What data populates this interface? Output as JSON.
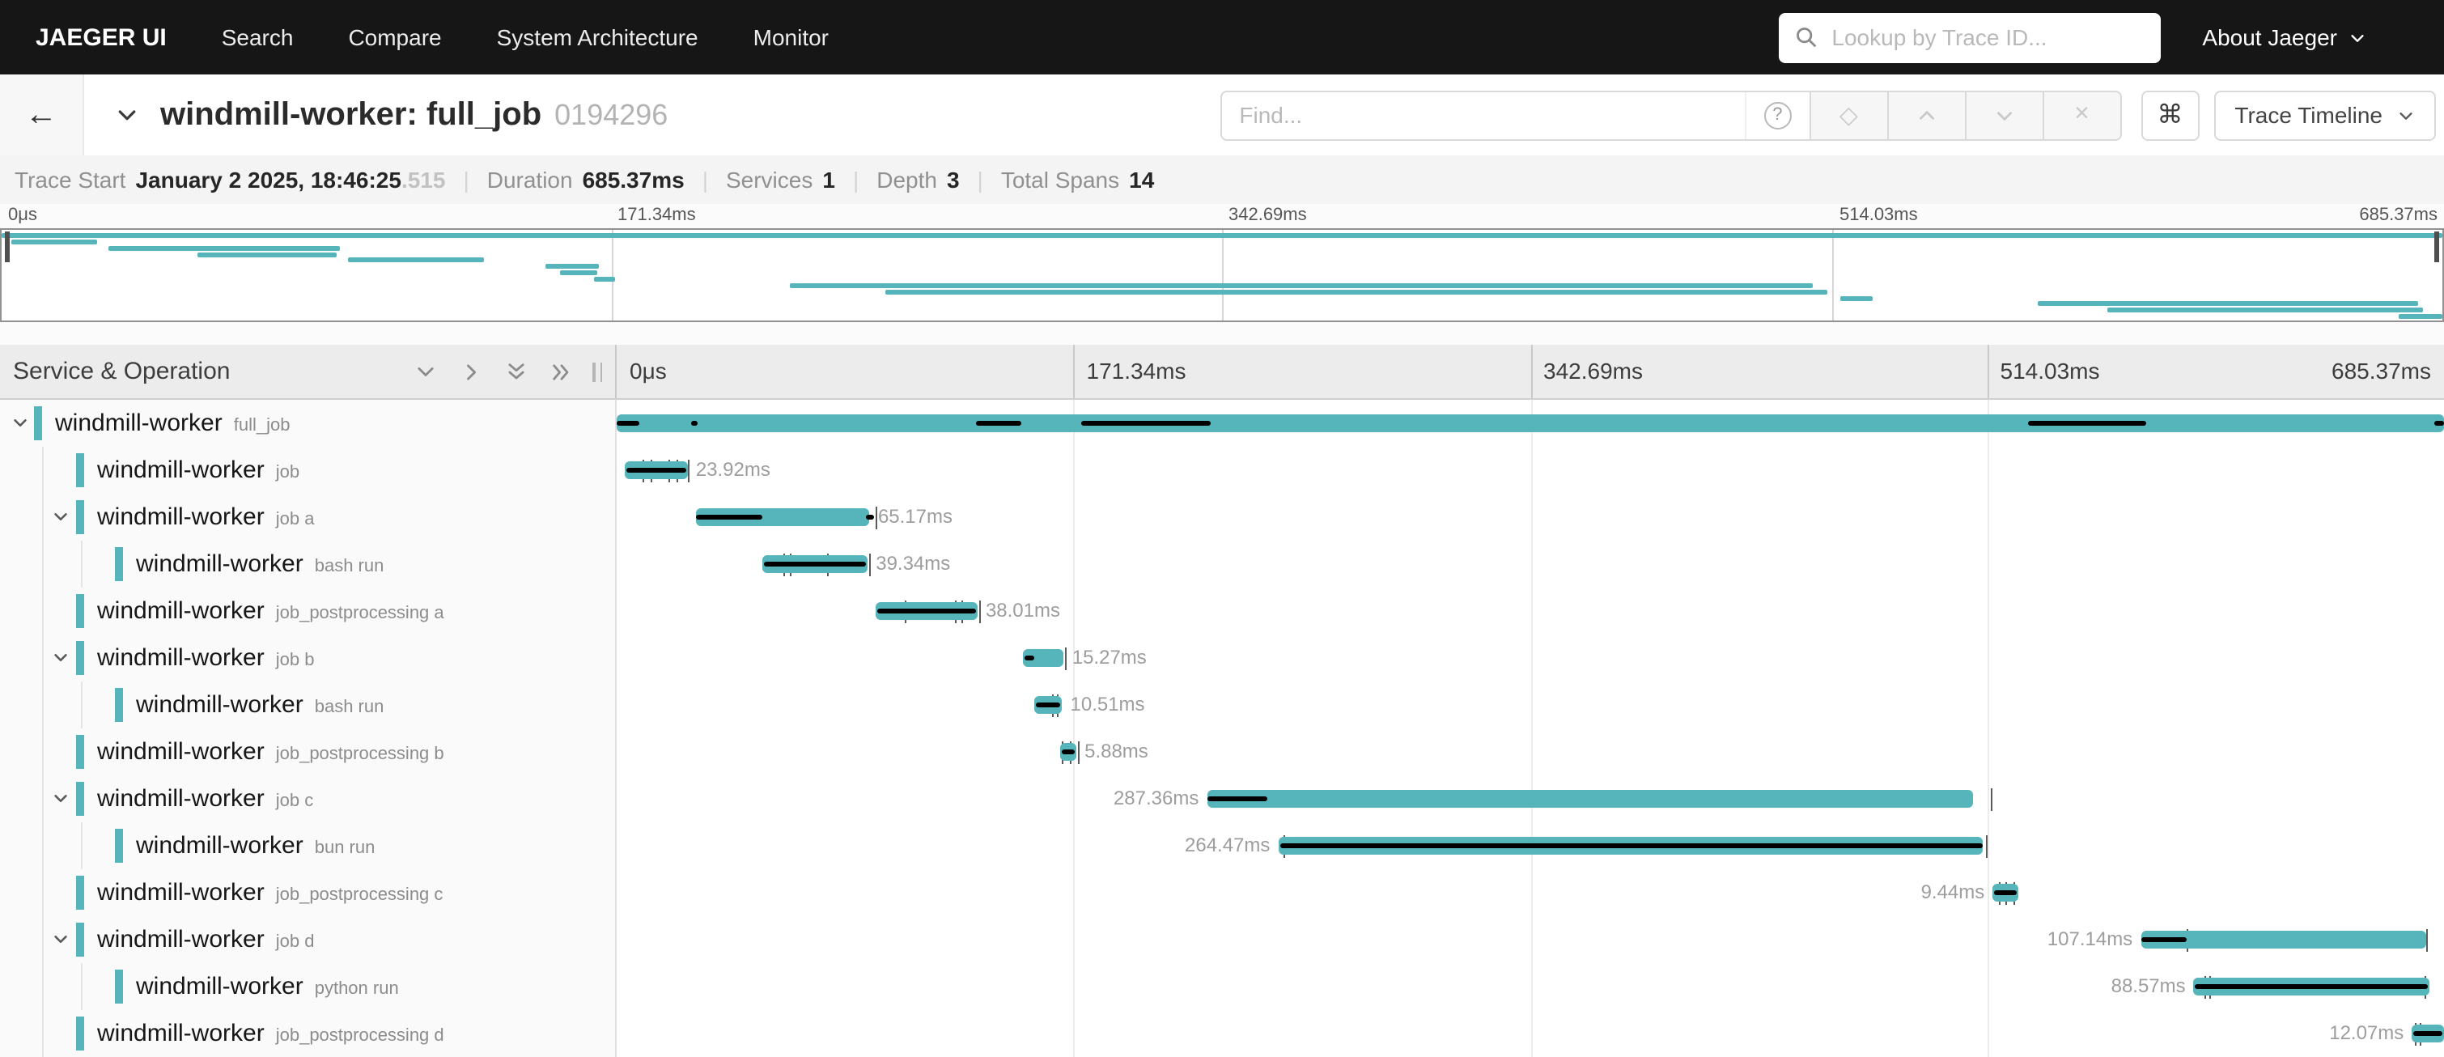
{
  "nav": {
    "brand": "JAEGER UI",
    "items": [
      "Search",
      "Compare",
      "System Architecture",
      "Monitor"
    ],
    "trace_lookup_placeholder": "Lookup by Trace ID...",
    "about_label": "About Jaeger"
  },
  "trace_header": {
    "back_glyph": "←",
    "title": "windmill-worker: full_job",
    "trace_id": "0194296",
    "find_placeholder": "Find...",
    "help_glyph": "?",
    "focus_glyph": "◇",
    "clear_glyph": "×",
    "shortcuts_glyph": "⌘",
    "view_selector_label": "Trace Timeline"
  },
  "stats": {
    "items": [
      {
        "label": "Trace Start",
        "value": "January 2 2025, 18:46:25",
        "suffix": ".515"
      },
      {
        "label": "Duration",
        "value": "685.37ms",
        "suffix": ""
      },
      {
        "label": "Services",
        "value": "1",
        "suffix": ""
      },
      {
        "label": "Depth",
        "value": "3",
        "suffix": ""
      },
      {
        "label": "Total Spans",
        "value": "14",
        "suffix": ""
      }
    ]
  },
  "timeline": {
    "left_header": "Service & Operation",
    "ticks": [
      "0μs",
      "171.34ms",
      "342.69ms",
      "514.03ms",
      "685.37ms"
    ]
  },
  "spans": [
    {
      "service": "windmill-worker",
      "operation": "full_job",
      "depth": 0,
      "has_children": true,
      "start_pct": 0,
      "width_pct": 100,
      "duration_label": "",
      "label_side": "none",
      "critical_pct": [
        [
          0,
          1.2
        ],
        [
          4.1,
          4.45
        ],
        [
          19.7,
          22.1
        ],
        [
          25.4,
          32.5
        ],
        [
          77.2,
          83.7
        ],
        [
          99.5,
          100
        ]
      ],
      "log_ticks_pct": []
    },
    {
      "service": "windmill-worker",
      "operation": "job",
      "depth": 1,
      "has_children": false,
      "start_pct": 0.4,
      "width_pct": 3.49,
      "duration_label": "23.92ms",
      "label_side": "right",
      "critical_pct": [
        [
          0.5,
          3.8
        ]
      ],
      "log_ticks_pct": [
        1.43,
        1.87,
        2.8,
        3.25,
        3.92
      ]
    },
    {
      "service": "windmill-worker",
      "operation": "job a",
      "depth": 1,
      "has_children": true,
      "start_pct": 4.35,
      "width_pct": 9.51,
      "duration_label": "65.17ms",
      "label_side": "right",
      "critical_pct": [
        [
          4.35,
          8.0
        ],
        [
          13.65,
          14.05
        ]
      ],
      "log_ticks_pct": [
        14.2
      ]
    },
    {
      "service": "windmill-worker",
      "operation": "bash run",
      "depth": 2,
      "has_children": false,
      "start_pct": 8.0,
      "width_pct": 5.74,
      "duration_label": "39.34ms",
      "label_side": "right",
      "critical_pct": [
        [
          8.1,
          13.65
        ]
      ],
      "log_ticks_pct": [
        9.1,
        9.5,
        11.5,
        13.8
      ]
    },
    {
      "service": "windmill-worker",
      "operation": "job_postprocessing a",
      "depth": 1,
      "has_children": false,
      "start_pct": 14.2,
      "width_pct": 5.55,
      "duration_label": "38.01ms",
      "label_side": "right",
      "critical_pct": [
        [
          14.3,
          19.65
        ]
      ],
      "log_ticks_pct": [
        15.8,
        18.5,
        18.9,
        19.85
      ]
    },
    {
      "service": "windmill-worker",
      "operation": "job b",
      "depth": 1,
      "has_children": true,
      "start_pct": 22.25,
      "width_pct": 2.23,
      "duration_label": "15.27ms",
      "label_side": "right",
      "critical_pct": [
        [
          22.3,
          22.85
        ]
      ],
      "log_ticks_pct": [
        24.55
      ]
    },
    {
      "service": "windmill-worker",
      "operation": "bash run",
      "depth": 2,
      "has_children": false,
      "start_pct": 22.85,
      "width_pct": 1.53,
      "duration_label": "10.51ms",
      "label_side": "right",
      "critical_pct": [
        [
          22.95,
          24.3
        ]
      ],
      "log_ticks_pct": [
        23.8,
        24.1
      ]
    },
    {
      "service": "windmill-worker",
      "operation": "job_postprocessing b",
      "depth": 1,
      "has_children": false,
      "start_pct": 24.3,
      "width_pct": 0.86,
      "duration_label": "5.88ms",
      "label_side": "right",
      "critical_pct": [
        [
          24.35,
          25.1
        ]
      ],
      "log_ticks_pct": [
        24.4,
        24.8,
        25.2
      ]
    },
    {
      "service": "windmill-worker",
      "operation": "job c",
      "depth": 1,
      "has_children": true,
      "start_pct": 32.3,
      "width_pct": 41.93,
      "duration_label": "287.36ms",
      "label_side": "left",
      "critical_pct": [
        [
          32.3,
          35.65
        ]
      ],
      "log_ticks_pct": [
        75.2
      ]
    },
    {
      "service": "windmill-worker",
      "operation": "bun run",
      "depth": 2,
      "has_children": false,
      "start_pct": 36.2,
      "width_pct": 38.59,
      "duration_label": "264.47ms",
      "label_side": "left",
      "critical_pct": [
        [
          36.3,
          74.75
        ]
      ],
      "log_ticks_pct": [
        36.45,
        74.9
      ]
    },
    {
      "service": "windmill-worker",
      "operation": "job_postprocessing c",
      "depth": 1,
      "has_children": false,
      "start_pct": 75.3,
      "width_pct": 1.38,
      "duration_label": "9.44ms",
      "label_side": "left",
      "critical_pct": [
        [
          75.35,
          76.6
        ]
      ],
      "log_ticks_pct": [
        75.6,
        76.0,
        76.4
      ]
    },
    {
      "service": "windmill-worker",
      "operation": "job d",
      "depth": 1,
      "has_children": true,
      "start_pct": 83.4,
      "width_pct": 15.63,
      "duration_label": "107.14ms",
      "label_side": "left",
      "critical_pct": [
        [
          83.4,
          85.9
        ]
      ],
      "log_ticks_pct": [
        85.9,
        99.0
      ]
    },
    {
      "service": "windmill-worker",
      "operation": "python run",
      "depth": 2,
      "has_children": false,
      "start_pct": 86.3,
      "width_pct": 12.92,
      "duration_label": "88.57ms",
      "label_side": "left",
      "critical_pct": [
        [
          86.4,
          99.1
        ]
      ],
      "log_ticks_pct": [
        86.9,
        87.15,
        98.95
      ]
    },
    {
      "service": "windmill-worker",
      "operation": "job_postprocessing d",
      "depth": 1,
      "has_children": false,
      "start_pct": 98.24,
      "width_pct": 1.76,
      "duration_label": "12.07ms",
      "label_side": "left",
      "critical_pct": [
        [
          98.3,
          99.95
        ]
      ],
      "log_ticks_pct": [
        98.4,
        98.7
      ]
    }
  ],
  "colors": {
    "span_bar": "#56b5ba",
    "critical_path": "#000000",
    "nav_bg": "#161616"
  }
}
